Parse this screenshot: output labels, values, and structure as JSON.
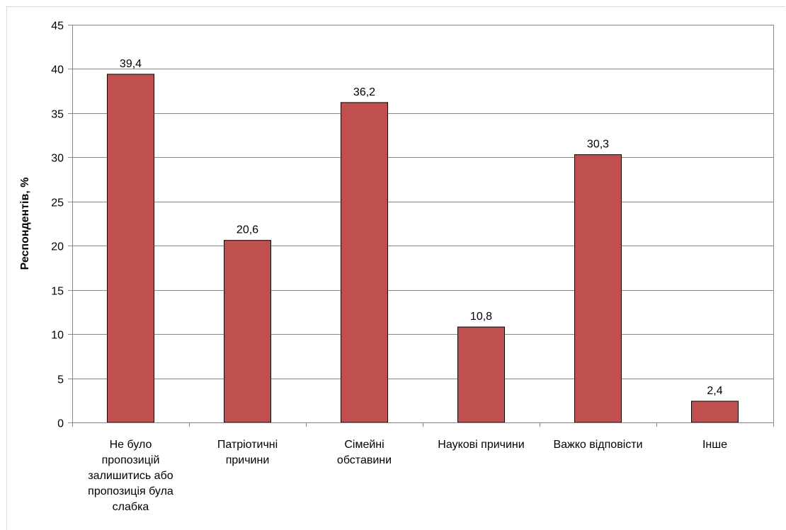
{
  "chart_data": {
    "type": "bar",
    "title": "",
    "xlabel": "",
    "ylabel": "Респондентів, %",
    "ylim": [
      0,
      45
    ],
    "yticks": [
      0,
      5,
      10,
      15,
      20,
      25,
      30,
      35,
      40,
      45
    ],
    "grid": true,
    "legend": "none",
    "bar_color": "#c0504d",
    "categories": [
      [
        "Не було",
        "пропозицій",
        "залишитись або",
        "пропозиція була",
        "слабка"
      ],
      [
        "Патріотичні",
        "причини"
      ],
      [
        "Сімейні",
        "обставини"
      ],
      [
        "Наукові причини"
      ],
      [
        "Важко відповісти"
      ],
      [
        "Інше"
      ]
    ],
    "values": [
      39.4,
      20.6,
      36.2,
      10.8,
      30.3,
      2.4
    ],
    "data_labels": [
      "39,4",
      "20,6",
      "36,2",
      "10,8",
      "30,3",
      "2,4"
    ]
  }
}
